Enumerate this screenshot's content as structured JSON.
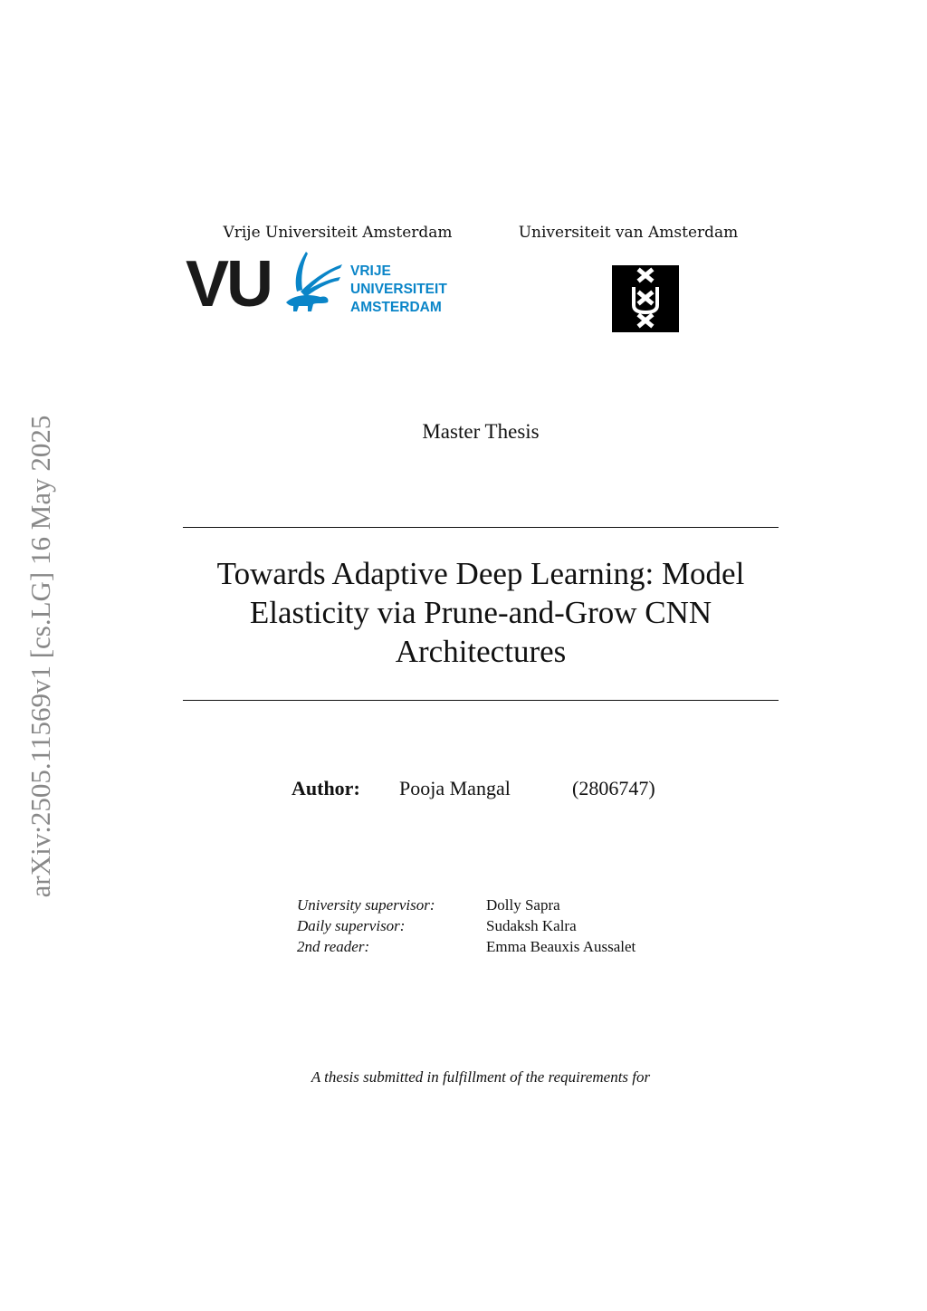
{
  "arxiv_stamp": "arXiv:2505.11569v1  [cs.LG]  16 May 2025",
  "universities": [
    {
      "name": "Vrije Universiteit Amsterdam",
      "logo_text": [
        "VU",
        "VRIJE",
        "UNIVERSITEIT",
        "AMSTERDAM"
      ],
      "logo_color": "#0a85c8"
    },
    {
      "name": "Universiteit van Amsterdam"
    }
  ],
  "document_type": "Master Thesis",
  "title": {
    "lines": [
      "Towards Adaptive Deep Learning: Model",
      "Elasticity via Prune-and-Grow CNN",
      "Architectures"
    ]
  },
  "author": {
    "label": "Author:",
    "name": "Pooja Mangal",
    "student_id": "(2806747)"
  },
  "supervisors": [
    {
      "role": "University supervisor:",
      "name": "Dolly Sapra"
    },
    {
      "role": "Daily supervisor:",
      "name": "Sudaksh Kalra"
    },
    {
      "role": "2nd reader:",
      "name": "Emma Beauxis Aussalet"
    }
  ],
  "submission_note": "A thesis submitted in fulfillment of the requirements for"
}
